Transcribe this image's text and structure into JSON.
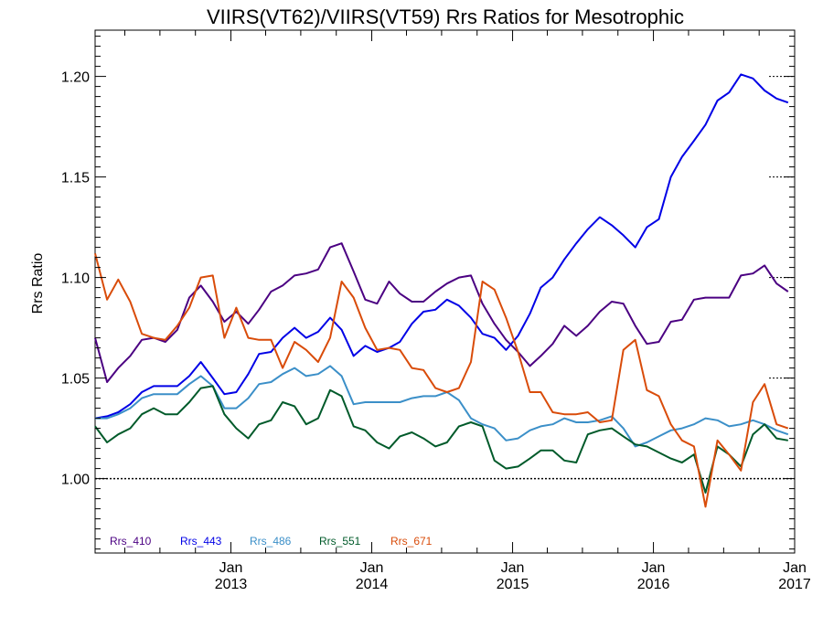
{
  "chart_data": {
    "type": "line",
    "title": "VIIRS(VT62)/VIIRS(VT59)  Rrs Ratios for Mesotrophic",
    "xlabel": "",
    "ylabel": "Rrs Ratio",
    "xlim": [
      "2012-01-15",
      "2017-01-01"
    ],
    "ylim": [
      0.963,
      1.223
    ],
    "y_ticks": [
      1.0,
      1.05,
      1.1,
      1.15,
      1.2
    ],
    "y_tick_labels": [
      "1.00",
      "1.05",
      "1.10",
      "1.15",
      "1.20"
    ],
    "x_ticks": [
      {
        "date": "2013-01-01",
        "month": "Jan",
        "year": "2013"
      },
      {
        "date": "2014-01-01",
        "month": "Jan",
        "year": "2014"
      },
      {
        "date": "2015-01-01",
        "month": "Jan",
        "year": "2015"
      },
      {
        "date": "2016-01-01",
        "month": "Jan",
        "year": "2016"
      },
      {
        "date": "2017-01-01",
        "month": "Jan",
        "year": "2017"
      }
    ],
    "reference_line": 1.0,
    "grid": false,
    "legend_position": "bottom-left",
    "x": [
      "2012-01-15",
      "2012-02-15",
      "2012-03-15",
      "2012-04-15",
      "2012-05-15",
      "2012-06-15",
      "2012-07-15",
      "2012-08-15",
      "2012-09-15",
      "2012-10-15",
      "2012-11-15",
      "2012-12-15",
      "2013-01-15",
      "2013-02-15",
      "2013-03-15",
      "2013-04-15",
      "2013-05-15",
      "2013-06-15",
      "2013-07-15",
      "2013-08-15",
      "2013-09-15",
      "2013-10-15",
      "2013-11-15",
      "2013-12-15",
      "2014-01-15",
      "2014-02-15",
      "2014-03-15",
      "2014-04-15",
      "2014-05-15",
      "2014-06-15",
      "2014-07-15",
      "2014-08-15",
      "2014-09-15",
      "2014-10-15",
      "2014-11-15",
      "2014-12-15",
      "2015-01-15",
      "2015-02-15",
      "2015-03-15",
      "2015-04-15",
      "2015-05-15",
      "2015-06-15",
      "2015-07-15",
      "2015-08-15",
      "2015-09-15",
      "2015-10-15",
      "2015-11-15",
      "2015-12-15",
      "2016-01-15",
      "2016-02-15",
      "2016-03-15",
      "2016-04-15",
      "2016-05-15",
      "2016-06-15",
      "2016-07-15",
      "2016-08-15",
      "2016-09-15",
      "2016-10-15",
      "2016-11-15",
      "2016-12-15"
    ],
    "series": [
      {
        "name": "Rrs_410",
        "color": "#4b0082",
        "values": [
          1.07,
          1.048,
          1.055,
          1.061,
          1.069,
          1.07,
          1.068,
          1.074,
          1.09,
          1.096,
          1.088,
          1.078,
          1.083,
          1.077,
          1.084,
          1.093,
          1.096,
          1.101,
          1.102,
          1.104,
          1.115,
          1.117,
          1.103,
          1.089,
          1.087,
          1.098,
          1.092,
          1.088,
          1.088,
          1.093,
          1.097,
          1.1,
          1.101,
          1.087,
          1.077,
          1.069,
          1.063,
          1.056,
          1.061,
          1.067,
          1.076,
          1.071,
          1.076,
          1.083,
          1.088,
          1.087,
          1.076,
          1.067,
          1.068,
          1.078,
          1.079,
          1.089,
          1.09,
          1.09,
          1.09,
          1.101,
          1.102,
          1.106,
          1.097,
          1.093
        ]
      },
      {
        "name": "Rrs_443",
        "color": "#0000e6",
        "values": [
          1.03,
          1.031,
          1.033,
          1.037,
          1.043,
          1.046,
          1.046,
          1.046,
          1.051,
          1.058,
          1.05,
          1.042,
          1.043,
          1.052,
          1.062,
          1.063,
          1.07,
          1.075,
          1.07,
          1.073,
          1.08,
          1.074,
          1.061,
          1.066,
          1.063,
          1.065,
          1.068,
          1.077,
          1.083,
          1.084,
          1.089,
          1.086,
          1.08,
          1.072,
          1.07,
          1.064,
          1.071,
          1.082,
          1.095,
          1.1,
          1.109,
          1.117,
          1.124,
          1.13,
          1.126,
          1.121,
          1.115,
          1.125,
          1.129,
          1.15,
          1.16,
          1.168,
          1.176,
          1.188,
          1.192,
          1.201,
          1.199,
          1.193,
          1.189,
          1.187
        ]
      },
      {
        "name": "Rrs_486",
        "color": "#3b8fc8",
        "values": [
          1.03,
          1.03,
          1.032,
          1.035,
          1.04,
          1.042,
          1.042,
          1.042,
          1.047,
          1.051,
          1.046,
          1.035,
          1.035,
          1.04,
          1.047,
          1.048,
          1.052,
          1.055,
          1.051,
          1.052,
          1.056,
          1.051,
          1.037,
          1.038,
          1.038,
          1.038,
          1.038,
          1.04,
          1.041,
          1.041,
          1.043,
          1.039,
          1.03,
          1.027,
          1.025,
          1.019,
          1.02,
          1.024,
          1.026,
          1.027,
          1.03,
          1.028,
          1.028,
          1.029,
          1.031,
          1.025,
          1.016,
          1.018,
          1.021,
          1.024,
          1.025,
          1.027,
          1.03,
          1.029,
          1.026,
          1.027,
          1.029,
          1.027,
          1.024,
          1.022
        ]
      },
      {
        "name": "Rrs_551",
        "color": "#005a2a",
        "values": [
          1.026,
          1.018,
          1.022,
          1.025,
          1.032,
          1.035,
          1.032,
          1.032,
          1.038,
          1.045,
          1.046,
          1.032,
          1.025,
          1.02,
          1.027,
          1.029,
          1.038,
          1.036,
          1.027,
          1.03,
          1.044,
          1.041,
          1.026,
          1.024,
          1.018,
          1.015,
          1.021,
          1.023,
          1.02,
          1.016,
          1.018,
          1.026,
          1.028,
          1.026,
          1.009,
          1.005,
          1.006,
          1.01,
          1.014,
          1.014,
          1.009,
          1.008,
          1.022,
          1.024,
          1.025,
          1.021,
          1.017,
          1.016,
          1.013,
          1.01,
          1.008,
          1.012,
          0.993,
          1.016,
          1.012,
          1.006,
          1.022,
          1.027,
          1.02,
          1.019
        ]
      },
      {
        "name": "Rrs_671",
        "color": "#d94c0a",
        "values": [
          1.112,
          1.089,
          1.099,
          1.088,
          1.072,
          1.07,
          1.069,
          1.076,
          1.085,
          1.1,
          1.101,
          1.07,
          1.085,
          1.07,
          1.069,
          1.069,
          1.055,
          1.068,
          1.064,
          1.058,
          1.07,
          1.098,
          1.09,
          1.075,
          1.064,
          1.065,
          1.064,
          1.055,
          1.054,
          1.045,
          1.043,
          1.045,
          1.058,
          1.098,
          1.094,
          1.08,
          1.063,
          1.043,
          1.043,
          1.033,
          1.032,
          1.032,
          1.033,
          1.028,
          1.029,
          1.064,
          1.069,
          1.044,
          1.041,
          1.027,
          1.019,
          1.016,
          0.986,
          1.019,
          1.012,
          1.004,
          1.038,
          1.047,
          1.027,
          1.025
        ]
      }
    ]
  }
}
